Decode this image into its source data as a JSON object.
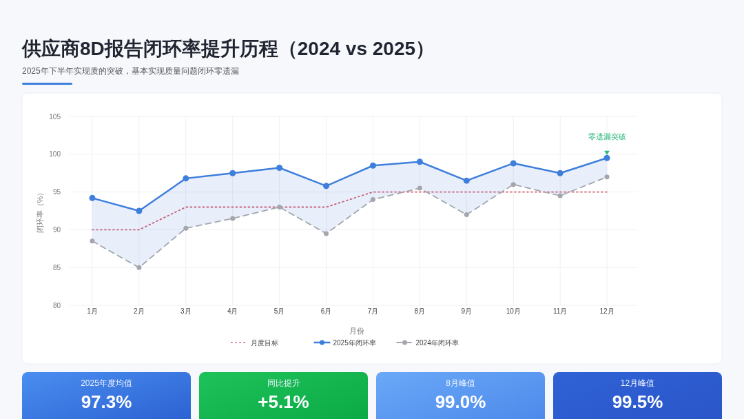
{
  "chart_data": [
    {
      "type": "line",
      "title": "供应商8D报告闭环率提升历程（2024 vs 2025）",
      "subtitle": "2025年下半年实现质的突破，基本实现质量问题闭环零遗漏",
      "xlabel": "月份",
      "ylabel": "闭环率（%）",
      "categories": [
        "1月",
        "2月",
        "3月",
        "4月",
        "5月",
        "6月",
        "7月",
        "8月",
        "9月",
        "10月",
        "11月",
        "12月"
      ],
      "series": [
        {
          "name": "月度目标",
          "color": "#d9606e",
          "line_style": "dotted",
          "marker": "none",
          "values": [
            90,
            90,
            93,
            93,
            93,
            93,
            95,
            95,
            95,
            95,
            95,
            95
          ]
        },
        {
          "name": "2025年闭环率",
          "color": "#3f7fdc",
          "line_style": "solid",
          "marker": "circle",
          "values": [
            94.2,
            92.5,
            96.8,
            97.5,
            98.2,
            95.8,
            98.5,
            99.0,
            96.5,
            98.8,
            97.5,
            99.5
          ],
          "lower": [
            88.5,
            85.0,
            90.2,
            91.5,
            93.0,
            89.5,
            94.0,
            95.5,
            92.0,
            96.0,
            94.5,
            97.0
          ],
          "upper": [
            94.2,
            92.5,
            96.8,
            97.5,
            98.2,
            95.8,
            98.5,
            99.0,
            96.5,
            98.8,
            97.5,
            99.5
          ]
        },
        {
          "name": "2024年闭环率",
          "color": "#a3a6ad",
          "line_style": "dashed",
          "marker": "circle",
          "values": [
            88.5,
            85.0,
            90.2,
            91.5,
            93.0,
            89.5,
            94.0,
            95.5,
            92.0,
            96.0,
            94.5,
            97.0
          ]
        }
      ],
      "ylim": [
        80,
        105
      ],
      "yticks": [
        80,
        85,
        90,
        95,
        100,
        105
      ],
      "grid": true,
      "legend": "bottom",
      "annotations": [
        {
          "text": "零遗漏突破",
          "x": "12月",
          "y": 100
        }
      ]
    },
    {
      "type": "other",
      "title": "2025年度均值",
      "annotations": [
        "97.3%"
      ]
    },
    {
      "type": "other",
      "title": "同比提升",
      "annotations": [
        "+5.1%"
      ]
    },
    {
      "type": "other",
      "title": "8月峰值",
      "annotations": [
        "99.0%"
      ]
    },
    {
      "type": "other",
      "title": "12月峰值",
      "annotations": [
        "99.5%"
      ]
    }
  ]
}
